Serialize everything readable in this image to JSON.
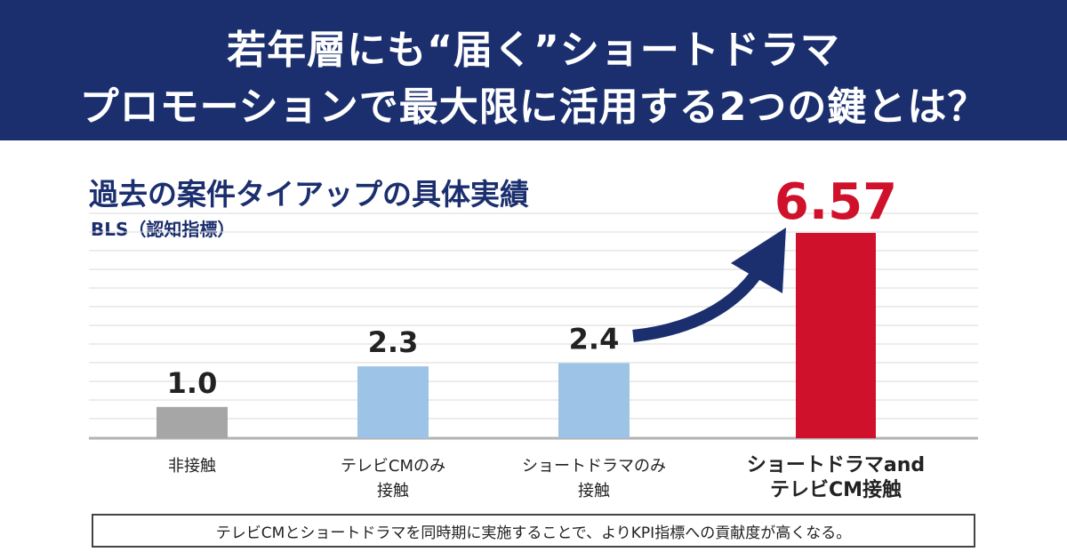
{
  "header": {
    "title_line1": "若年層にも“届く”ショートドラマ",
    "title_line2": "プロモーションで最大限に活用する2つの鍵とは？"
  },
  "colors": {
    "banner": "#1b2f6e",
    "text_navy": "#1b2f6e",
    "bar_gray": "#a6a6a6",
    "bar_blue": "#9dc3e6",
    "bar_red": "#d0112b",
    "arrow": "#1b2f6e"
  },
  "chart_data": {
    "type": "bar",
    "title": "過去の案件タイアップの具体実績",
    "ylabel": "BLS（認知指標）",
    "categories": [
      [
        "非接触"
      ],
      [
        "テレビCMのみ",
        "接触"
      ],
      [
        "ショートドラマのみ",
        "接触"
      ],
      [
        "ショートドラマand",
        "テレビCM接触"
      ]
    ],
    "values": [
      1.0,
      2.3,
      2.4,
      6.57
    ],
    "value_labels": [
      "1.0",
      "2.3",
      "2.4",
      "6.57"
    ],
    "bar_colors": [
      "#a6a6a6",
      "#9dc3e6",
      "#9dc3e6",
      "#d0112b"
    ],
    "highlight_index": 3,
    "ylim": [
      0,
      6.57
    ],
    "grid": true,
    "annotation": "arrow from 2.4 to 6.57"
  },
  "footer": {
    "note": "テレビCMとショートドラマを同時期に実施することで、よりKPI指標への貢献度が高くなる。"
  }
}
